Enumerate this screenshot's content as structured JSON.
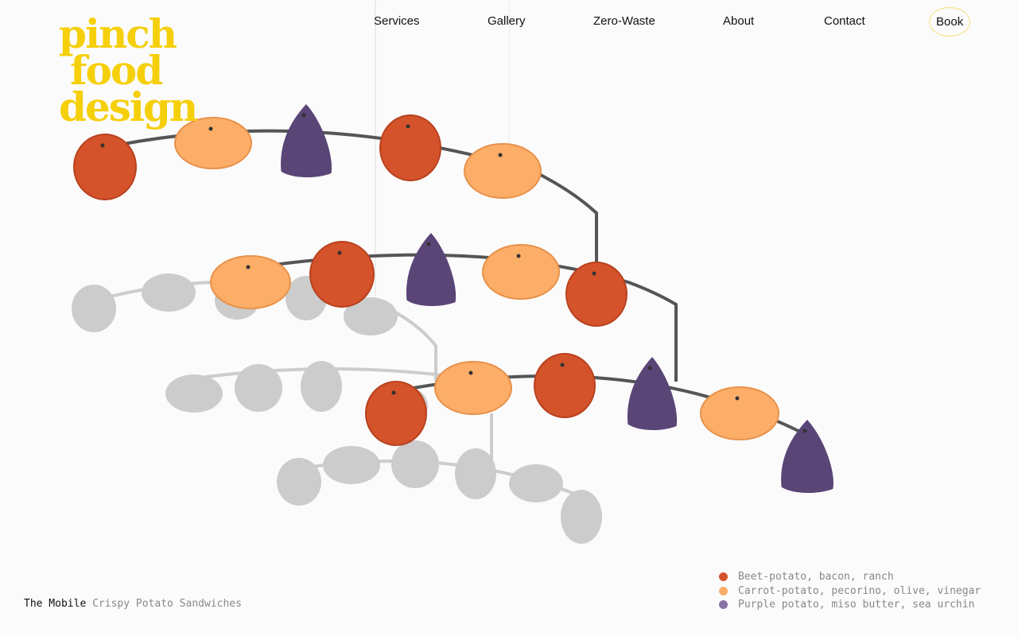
{
  "logo": {
    "lines": [
      "pinch",
      "food",
      "design"
    ],
    "color": "#f5cf0a"
  },
  "nav": {
    "items": [
      "Services",
      "Gallery",
      "Zero-Waste",
      "About",
      "Contact"
    ],
    "book": "Book"
  },
  "caption": {
    "title": "The Mobile",
    "subtitle": "Crispy Potato Sandwiches"
  },
  "legend": [
    {
      "label": "Beet-potato, bacon, ranch",
      "color": "#d4532a"
    },
    {
      "label": "Carrot-potato, pecorino, olive, vinegar",
      "color": "#fcae68"
    },
    {
      "label": "Purple potato, miso butter, sea urchin",
      "color": "#8a73a8"
    }
  ],
  "colors": {
    "beet": "#d4532a",
    "carrot": "#fcae68",
    "purple": "#5a4577",
    "shadow": "#cccccc",
    "wire": "#555555"
  }
}
